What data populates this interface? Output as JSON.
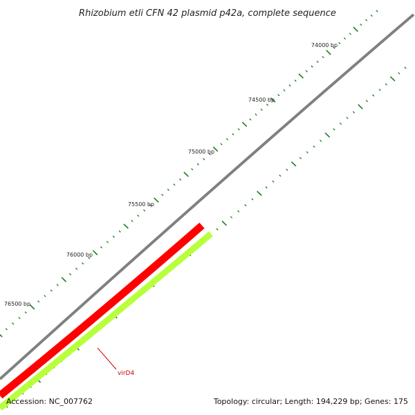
{
  "title": "Rhizobium etli CFN 42 plasmid p42a, complete sequence",
  "tick_labels": [
    "74000 bp",
    "74500 bp",
    "75000 bp",
    "75500 bp",
    "76000 bp",
    "76500 bp"
  ],
  "genes": [
    {
      "name": "virD4",
      "color": "#ff0000",
      "label_color": "#cc0000"
    }
  ],
  "orf_color": "#b8ff3c",
  "backbone_color": "#808080",
  "tick_color": "#1a7a1a",
  "footer": {
    "accession": "Accession: NC_007762",
    "summary": "Topology: circular; Length: 194,229 bp; Genes: 175"
  }
}
